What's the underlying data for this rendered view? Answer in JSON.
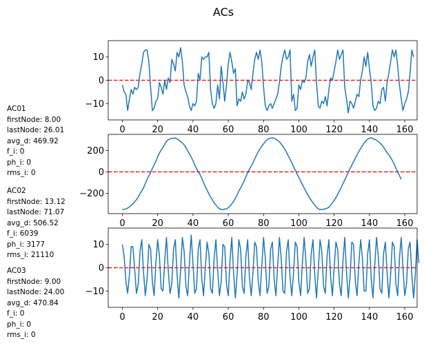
{
  "title": "ACs",
  "info_blocks": [
    {
      "name": "AC01",
      "lines": [
        "firstNode: 8.00",
        "lastNode: 26.01",
        "avg_d: 469.92",
        "f_i: 0",
        "ph_i: 0",
        "rms_i: 0"
      ]
    },
    {
      "name": "AC02",
      "lines": [
        "firstNode: 13.12",
        "lastNode: 71.07",
        "avg_d: 506.52",
        "f_i: 6039",
        "ph_i: 3177",
        "rms_i: 21110"
      ]
    },
    {
      "name": "AC03",
      "lines": [
        "firstNode: 9.00",
        "lastNode: 24.00",
        "avg_d: 470.84",
        "f_i: 0",
        "ph_i: 0",
        "rms_i: 0"
      ]
    }
  ],
  "colors": {
    "line": "#1f77b4",
    "reference": "#d62728"
  },
  "chart_data": [
    {
      "type": "line",
      "title": "",
      "x": "0..159 (index)",
      "xlim": [
        -8,
        167
      ],
      "ylim": [
        -17,
        17
      ],
      "x_ticks": [
        0,
        20,
        40,
        60,
        80,
        100,
        120,
        140,
        160
      ],
      "y_ticks": [
        10,
        0,
        -10
      ],
      "reference_line": {
        "y": 0,
        "style": "dashed",
        "color": "#d62728"
      },
      "series": [
        {
          "values": [
            -2,
            -5,
            -6,
            -13,
            -8,
            -4,
            -6,
            -3,
            -4,
            -3,
            3,
            7,
            12,
            13,
            13,
            8,
            -3,
            -13,
            -12,
            -9,
            -8,
            -1,
            -3,
            -6,
            0,
            -4,
            1,
            -1,
            9,
            7,
            4,
            12,
            10,
            14,
            8,
            -2,
            -5,
            -7,
            -11,
            -13,
            -10,
            -11,
            -9,
            3,
            0,
            10,
            9,
            10,
            10,
            12,
            -4,
            -10,
            -12,
            -10,
            -2,
            -8,
            6,
            -1,
            -9,
            -2,
            7,
            12,
            8,
            3,
            5,
            -11,
            -8,
            -9,
            -5,
            -8,
            -6,
            0,
            -1,
            -4,
            3,
            9,
            12,
            9,
            13,
            8,
            -3,
            -11,
            -13,
            -11,
            -10,
            -12,
            -10,
            -8,
            -6,
            -1,
            6,
            10,
            13,
            9,
            10,
            13,
            -9,
            -6,
            -13,
            -12,
            -2,
            -4,
            0,
            -1,
            1,
            8,
            11,
            6,
            10,
            13,
            -1,
            -11,
            -12,
            -9,
            -10,
            -7,
            -11,
            -4,
            1,
            0,
            4,
            8,
            13,
            9,
            11,
            13,
            -3,
            -8,
            -14,
            -9,
            -10,
            -12,
            -9,
            -6,
            -7,
            0,
            4,
            10,
            6,
            12,
            5,
            -1,
            -11,
            -13,
            -12,
            -9,
            -10,
            -4,
            -3,
            -9,
            -1,
            3,
            8,
            13,
            10,
            13,
            6,
            -2,
            -8,
            -13,
            -10,
            -8,
            -5,
            3,
            13,
            10
          ]
        }
      ]
    },
    {
      "type": "line",
      "title": "",
      "x": "0..159 (index)",
      "xlim": [
        -8,
        167
      ],
      "ylim": [
        -390,
        350
      ],
      "x_ticks": [
        0,
        20,
        40,
        60,
        80,
        100,
        120,
        140,
        160
      ],
      "y_ticks": [
        200,
        0,
        -200
      ],
      "reference_line": {
        "y": 0,
        "style": "dashed",
        "color": "#d62728"
      },
      "series": [
        {
          "values": [
            -350,
            -352,
            -345,
            -338,
            -328,
            -312,
            -298,
            -280,
            -260,
            -235,
            -205,
            -178,
            -148,
            -110,
            -70,
            -38,
            -5,
            32,
            65,
            100,
            140,
            175,
            205,
            228,
            258,
            285,
            300,
            307,
            315,
            312,
            317,
            308,
            298,
            283,
            270,
            252,
            228,
            198,
            168,
            138,
            104,
            65,
            30,
            0,
            -25,
            -60,
            -100,
            -138,
            -170,
            -205,
            -235,
            -262,
            -290,
            -310,
            -330,
            -345,
            -350,
            -352,
            -348,
            -345,
            -335,
            -320,
            -298,
            -275,
            -248,
            -215,
            -180,
            -150,
            -118,
            -85,
            -45,
            -10,
            25,
            55,
            85,
            120,
            155,
            188,
            215,
            240,
            262,
            282,
            300,
            310,
            315,
            318,
            312,
            305,
            294,
            280,
            260,
            238,
            212,
            182,
            150,
            118,
            85,
            50,
            15,
            -20,
            -52,
            -85,
            -118,
            -150,
            -182,
            -212,
            -240,
            -265,
            -290,
            -310,
            -330,
            -345,
            -352,
            -350,
            -350,
            -345,
            -340,
            -330,
            -310,
            -290,
            -268,
            -240,
            -210,
            -178,
            -145,
            -110,
            -75,
            -40,
            -5,
            30,
            62,
            95,
            128,
            160,
            190,
            218,
            245,
            268,
            288,
            305,
            315,
            318,
            310,
            305,
            295,
            282,
            270,
            252,
            230,
            205,
            180,
            158,
            135,
            105,
            72,
            35,
            0,
            -35,
            -70
          ]
        }
      ]
    },
    {
      "type": "line",
      "title": "",
      "x": "0..159 (index)",
      "xlim": [
        -8,
        167
      ],
      "ylim": [
        -17,
        17
      ],
      "x_ticks": [
        0,
        20,
        40,
        60,
        80,
        100,
        120,
        140,
        160
      ],
      "y_ticks": [
        10,
        0,
        -10
      ],
      "reference_line": {
        "y": 0,
        "style": "dashed",
        "color": "#d62728"
      },
      "series": [
        {
          "values": [
            10,
            5,
            -6,
            -11,
            -3,
            9,
            9,
            -1,
            -11,
            -7,
            7,
            12,
            -2,
            -12,
            -5,
            10,
            8,
            -6,
            -12,
            2,
            12,
            5,
            -9,
            -10,
            3,
            13,
            -1,
            -11,
            -7,
            8,
            12,
            -3,
            -13,
            -1,
            13,
            7,
            -8,
            -12,
            2,
            14,
            2,
            -11,
            -9,
            8,
            12,
            -5,
            -12,
            0,
            11,
            6,
            -9,
            -11,
            4,
            12,
            -1,
            -12,
            -6,
            10,
            9,
            -7,
            -12,
            3,
            13,
            -2,
            -13,
            -3,
            12,
            8,
            -8,
            -11,
            5,
            12,
            -4,
            -12,
            -2,
            11,
            9,
            -6,
            -12,
            1,
            13,
            4,
            -11,
            -8,
            8,
            11,
            -5,
            -12,
            1,
            13,
            4,
            -10,
            -11,
            7,
            12,
            -4,
            -12,
            -2,
            11,
            9,
            -6,
            -12,
            2,
            13,
            3,
            -11,
            -9,
            6,
            12,
            -3,
            -13,
            -1,
            12,
            7,
            -8,
            -11,
            5,
            12,
            -4,
            -12,
            0,
            11,
            8,
            -7,
            -12,
            3,
            13,
            -2,
            -13,
            -4,
            11,
            10,
            -6,
            -12,
            2,
            12,
            4,
            -10,
            -10,
            6,
            12,
            -5,
            -13,
            1,
            13,
            5,
            -9,
            -11,
            6,
            11,
            -2,
            -13,
            -3,
            11,
            9,
            -7,
            -12,
            4,
            13,
            0,
            -12,
            -7,
            8,
            11,
            -3,
            -13,
            -3,
            12,
            2
          ]
        }
      ]
    }
  ]
}
